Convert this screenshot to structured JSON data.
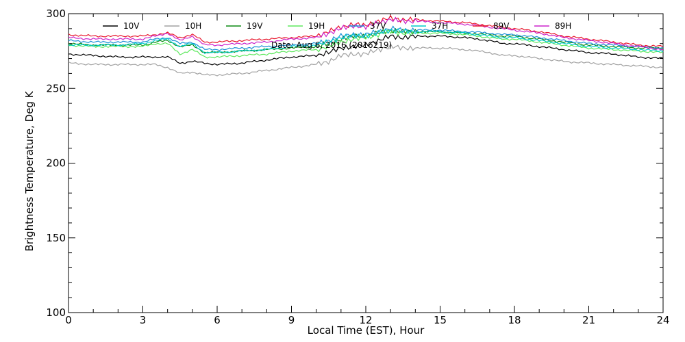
{
  "chart_data": {
    "type": "line",
    "title": "",
    "annotation": "Date: Aug  6, 2016 (2016219)",
    "xlabel": "Local Time (EST), Hour",
    "ylabel": "Brightness Temperature, Deg K",
    "xlim": [
      0,
      24
    ],
    "ylim": [
      100,
      300
    ],
    "xticks": [
      0,
      3,
      6,
      9,
      12,
      15,
      18,
      21,
      24
    ],
    "yticks": [
      100,
      150,
      200,
      250,
      300
    ],
    "x_tick_labels": [
      "0",
      "3",
      "6",
      "9",
      "12",
      "15",
      "18",
      "21",
      "24"
    ],
    "y_tick_labels": [
      "100",
      "150",
      "200",
      "250",
      "300"
    ],
    "grid": false,
    "legend_position": "top",
    "x": [
      0,
      1,
      2,
      3,
      3.5,
      4,
      4.5,
      5,
      5.5,
      6,
      7,
      8,
      9,
      10,
      10.5,
      11,
      11.5,
      12,
      12.5,
      13,
      13.5,
      14,
      15,
      16,
      17,
      17.5,
      18,
      19,
      20,
      21,
      22,
      23,
      24
    ],
    "series": [
      {
        "name": "10V",
        "color": "#000000",
        "values": [
          273,
          272,
          271,
          271,
          271,
          271,
          267,
          268,
          267,
          266,
          267,
          269,
          271,
          272,
          274,
          277,
          278,
          279,
          282,
          285,
          284,
          285,
          285,
          284,
          282,
          280,
          280,
          278,
          276,
          274,
          273,
          271,
          270
        ]
      },
      {
        "name": "10H",
        "color": "#a0a0a0",
        "values": [
          267,
          266,
          266,
          266,
          266,
          264,
          260,
          261,
          259,
          259,
          260,
          262,
          264,
          266,
          268,
          272,
          273,
          273,
          276,
          278,
          277,
          277,
          277,
          276,
          274,
          272,
          272,
          270,
          268,
          267,
          266,
          265,
          264
        ]
      },
      {
        "name": "19V",
        "color": "#0b8a12",
        "values": [
          280,
          279,
          279,
          279,
          281,
          282,
          278,
          279,
          274,
          274,
          275,
          276,
          277,
          278,
          280,
          283,
          285,
          285,
          287,
          289,
          288,
          288,
          288,
          287,
          286,
          285,
          285,
          283,
          281,
          279,
          278,
          277,
          277
        ]
      },
      {
        "name": "19H",
        "color": "#5de85d",
        "values": [
          279,
          278,
          278,
          278,
          280,
          280,
          273,
          276,
          271,
          271,
          272,
          273,
          275,
          276,
          278,
          281,
          283,
          284,
          286,
          288,
          287,
          287,
          287,
          286,
          284,
          283,
          283,
          281,
          279,
          277,
          276,
          275,
          274
        ]
      },
      {
        "name": "37V",
        "color": "#1a8fd6",
        "values": [
          282,
          281,
          281,
          281,
          283,
          284,
          280,
          281,
          276,
          276,
          277,
          278,
          279,
          280,
          282,
          285,
          286,
          286,
          288,
          290,
          289,
          289,
          289,
          288,
          287,
          286,
          286,
          284,
          282,
          280,
          279,
          278,
          277
        ]
      },
      {
        "name": "37H",
        "color": "#00cccc",
        "values": [
          279,
          279,
          279,
          280,
          282,
          283,
          278,
          280,
          274,
          274,
          275,
          276,
          278,
          279,
          281,
          284,
          285,
          285,
          287,
          289,
          288,
          288,
          288,
          287,
          285,
          284,
          284,
          282,
          280,
          278,
          277,
          276,
          275
        ]
      },
      {
        "name": "89V",
        "color": "#e8182e",
        "values": [
          286,
          285,
          285,
          285,
          286,
          287,
          284,
          286,
          281,
          281,
          282,
          283,
          284,
          285,
          288,
          291,
          293,
          292,
          295,
          297,
          296,
          296,
          295,
          294,
          292,
          291,
          290,
          288,
          285,
          283,
          281,
          279,
          278
        ]
      },
      {
        "name": "89H",
        "color": "#cc22cc",
        "values": [
          284,
          283,
          283,
          283,
          285,
          287,
          282,
          285,
          279,
          279,
          280,
          281,
          283,
          284,
          287,
          290,
          292,
          291,
          294,
          296,
          295,
          295,
          294,
          293,
          291,
          290,
          289,
          287,
          284,
          282,
          280,
          278,
          276
        ]
      }
    ]
  }
}
